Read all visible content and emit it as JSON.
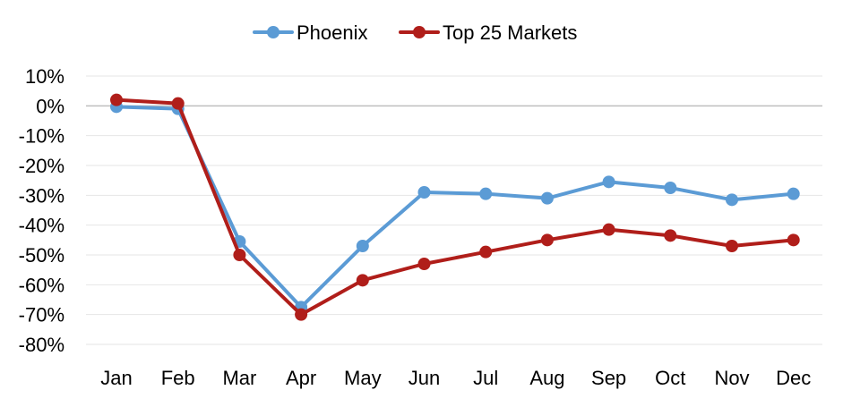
{
  "chart_data": {
    "type": "line",
    "categories": [
      "Jan",
      "Feb",
      "Mar",
      "Apr",
      "May",
      "Jun",
      "Jul",
      "Aug",
      "Sep",
      "Oct",
      "Nov",
      "Dec"
    ],
    "series": [
      {
        "name": "Phoenix",
        "color": "#5B9BD5",
        "values": [
          -0.3,
          -1.0,
          -45.5,
          -67.5,
          -47.0,
          -29.0,
          -29.5,
          -31.0,
          -25.5,
          -27.5,
          -31.5,
          -29.5
        ]
      },
      {
        "name": "Top 25 Markets",
        "color": "#B01E1A",
        "values": [
          2.0,
          0.8,
          -50.0,
          -70.0,
          -58.5,
          -53.0,
          -49.0,
          -45.0,
          -41.5,
          -43.5,
          -47.0,
          -45.0
        ]
      }
    ],
    "ylim": [
      -80,
      10
    ],
    "yticks": [
      10,
      0,
      -10,
      -20,
      -30,
      -40,
      -50,
      -60,
      -70,
      -80
    ],
    "ytick_labels": [
      "10%",
      "0%",
      "-10%",
      "-20%",
      "-30%",
      "-40%",
      "-50%",
      "-60%",
      "-70%",
      "-80%"
    ],
    "grid": true,
    "legend": "top-center",
    "title": "",
    "xlabel": "",
    "ylabel": ""
  }
}
